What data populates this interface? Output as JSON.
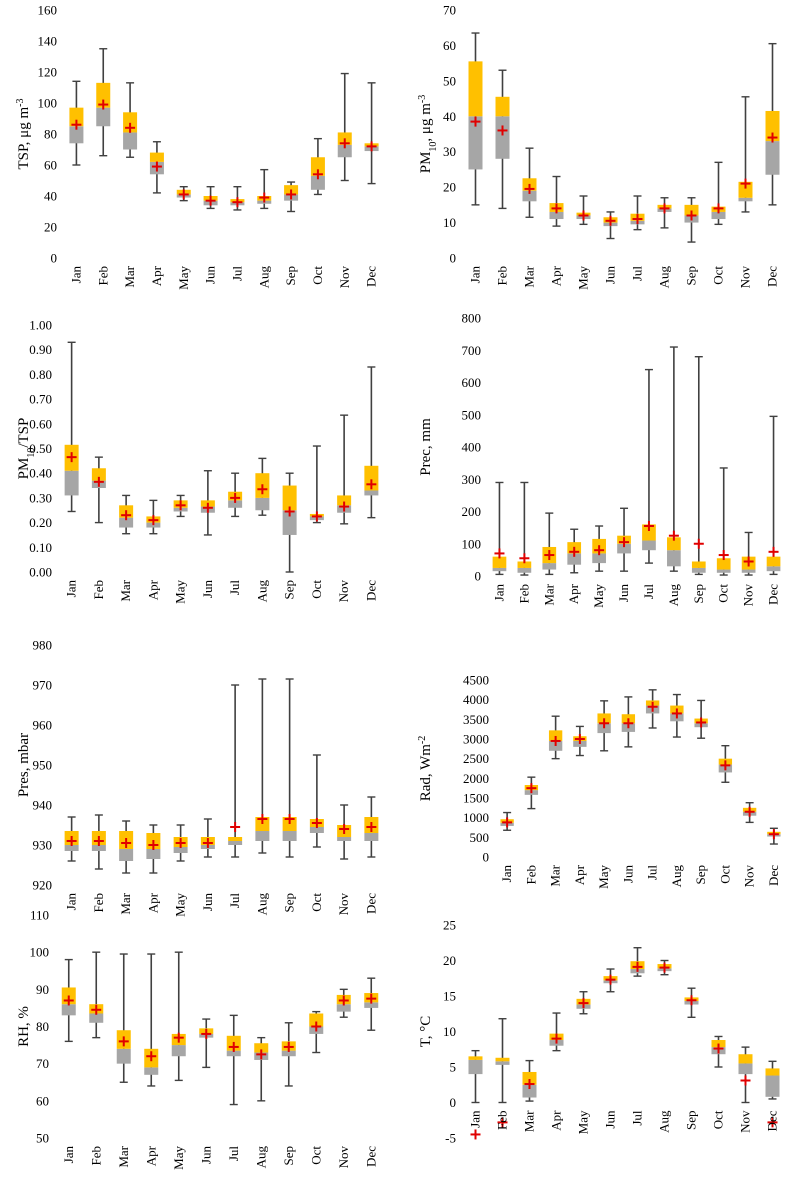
{
  "colors": {
    "upper": "#FFC000",
    "lower": "#A6A6A6",
    "whisker": "#404040",
    "mean": "#E00000"
  },
  "chart_data": [
    {
      "type": "box",
      "title": "",
      "ylabel": "TSP, μg m⁻³",
      "ylabel_parts": [
        {
          "t": "TSP, μg m"
        },
        {
          "t": "-3",
          "sup": true
        }
      ],
      "ylim": [
        0,
        160
      ],
      "yticks": [
        0,
        20,
        40,
        60,
        80,
        100,
        120,
        140,
        160
      ],
      "ytick_labels": [
        "0",
        "20",
        "40",
        "60",
        "80",
        "100",
        "120",
        "140",
        "160"
      ],
      "categories": [
        "Jan",
        "Feb",
        "Mar",
        "Apr",
        "May",
        "Jun",
        "Jul",
        "Aug",
        "Sep",
        "Oct",
        "Nov",
        "Dec"
      ],
      "min": [
        60,
        66,
        65,
        42,
        37,
        32,
        31,
        32,
        30,
        41,
        50,
        48
      ],
      "q1": [
        74,
        85,
        70,
        54,
        39,
        34,
        34,
        35,
        37,
        44,
        65,
        69
      ],
      "median": [
        85,
        97,
        81,
        62,
        41,
        37,
        36,
        37,
        41,
        53,
        73,
        72
      ],
      "q3": [
        97,
        113,
        94,
        68,
        44,
        40,
        38,
        40,
        47,
        65,
        81,
        74
      ],
      "max": [
        114,
        135,
        113,
        75,
        46,
        46,
        46,
        57,
        49,
        77,
        119,
        113
      ],
      "mean": [
        86,
        99,
        84,
        59,
        41,
        37,
        36,
        39,
        41,
        54,
        74,
        72
      ]
    },
    {
      "type": "box",
      "title": "",
      "ylabel": "PM₁₀, μg m⁻³",
      "ylabel_parts": [
        {
          "t": "PM"
        },
        {
          "t": "10",
          "sub": true
        },
        {
          "t": ", μg m"
        },
        {
          "t": "-3",
          "sup": true
        }
      ],
      "ylim": [
        0,
        70
      ],
      "yticks": [
        0,
        10,
        20,
        30,
        40,
        50,
        60,
        70
      ],
      "ytick_labels": [
        "0",
        "10",
        "20",
        "30",
        "40",
        "50",
        "60",
        "70"
      ],
      "categories": [
        "Jan",
        "Feb",
        "Mar",
        "Apr",
        "May",
        "Jun",
        "Jul",
        "Aug",
        "Sep",
        "Oct",
        "Nov",
        "Dec"
      ],
      "min": [
        15,
        14,
        11.5,
        9,
        9.5,
        5.5,
        8,
        8.5,
        4.5,
        9.5,
        13,
        15
      ],
      "q1": [
        25,
        28,
        16,
        11,
        11,
        9,
        9.5,
        13,
        10,
        11,
        16,
        23.5
      ],
      "median": [
        40,
        40,
        19,
        13,
        12,
        10,
        10.5,
        14,
        12,
        13,
        17,
        33
      ],
      "q3": [
        55.5,
        45.5,
        22.5,
        15.5,
        12.8,
        11.5,
        12.5,
        15,
        15,
        14.5,
        21.5,
        41.5
      ],
      "max": [
        63.5,
        53,
        31,
        23,
        17.5,
        13,
        17.5,
        17,
        17,
        27,
        45.5,
        60.5
      ],
      "mean": [
        38.5,
        36,
        19.5,
        14,
        12,
        10.5,
        11,
        14,
        12,
        14,
        21,
        34
      ]
    },
    {
      "type": "box",
      "title": "",
      "ylabel": "PM₁₀/TSP",
      "ylabel_parts": [
        {
          "t": "PM"
        },
        {
          "t": "10",
          "sub": true
        },
        {
          "t": "/TSP"
        }
      ],
      "ylim": [
        0,
        1
      ],
      "yticks": [
        0,
        0.1,
        0.2,
        0.3,
        0.4,
        0.5,
        0.6,
        0.7,
        0.8,
        0.9,
        1
      ],
      "ytick_labels": [
        "0.00",
        "0.10",
        "0.20",
        "0.30",
        "0.40",
        "0.50",
        "0.60",
        "0.70",
        "0.80",
        "0.90",
        "1.00"
      ],
      "categories": [
        "Jan",
        "Feb",
        "Mar",
        "Apr",
        "May",
        "Jun",
        "Jul",
        "Aug",
        "Sep",
        "Oct",
        "Nov",
        "Dec"
      ],
      "min": [
        0.245,
        0.2,
        0.155,
        0.155,
        0.225,
        0.15,
        0.225,
        0.23,
        0,
        0.2,
        0.195,
        0.22
      ],
      "q1": [
        0.31,
        0.34,
        0.18,
        0.18,
        0.245,
        0.24,
        0.26,
        0.25,
        0.15,
        0.21,
        0.24,
        0.31
      ],
      "median": [
        0.41,
        0.37,
        0.22,
        0.2,
        0.26,
        0.265,
        0.29,
        0.3,
        0.25,
        0.225,
        0.27,
        0.33
      ],
      "q3": [
        0.515,
        0.42,
        0.27,
        0.225,
        0.29,
        0.29,
        0.325,
        0.4,
        0.35,
        0.235,
        0.31,
        0.43
      ],
      "max": [
        0.93,
        0.465,
        0.31,
        0.29,
        0.31,
        0.41,
        0.4,
        0.46,
        0.4,
        0.51,
        0.635,
        0.83
      ],
      "mean": [
        0.465,
        0.365,
        0.23,
        0.21,
        0.27,
        0.26,
        0.3,
        0.335,
        0.245,
        0.225,
        0.265,
        0.355
      ]
    },
    {
      "type": "box",
      "title": "",
      "ylabel": "Prec, mm",
      "ylabel_parts": [
        {
          "t": "Prec, mm"
        }
      ],
      "ylim": [
        0,
        800
      ],
      "yticks": [
        0,
        100,
        200,
        300,
        400,
        500,
        600,
        700,
        800
      ],
      "ytick_labels": [
        "0",
        "100",
        "200",
        "300",
        "400",
        "500",
        "600",
        "700",
        "800"
      ],
      "categories": [
        "Jan",
        "Feb",
        "Mar",
        "Apr",
        "May",
        "Jun",
        "Jul",
        "Aug",
        "Sep",
        "Oct",
        "Nov",
        "Dec"
      ],
      "min": [
        5,
        3,
        5,
        10,
        15,
        15,
        40,
        15,
        5,
        3,
        3,
        5
      ],
      "q1": [
        15,
        10,
        20,
        35,
        40,
        70,
        80,
        30,
        10,
        10,
        10,
        15
      ],
      "median": [
        25,
        25,
        40,
        70,
        70,
        100,
        110,
        80,
        25,
        20,
        20,
        30
      ],
      "q3": [
        60,
        45,
        90,
        105,
        115,
        125,
        160,
        120,
        45,
        55,
        60,
        60
      ],
      "max": [
        290,
        290,
        195,
        145,
        155,
        210,
        640,
        710,
        680,
        335,
        135,
        495
      ],
      "mean": [
        70,
        55,
        65,
        75,
        80,
        105,
        155,
        125,
        100,
        65,
        45,
        75
      ]
    },
    {
      "type": "box",
      "title": "",
      "ylabel": "Pres, mbar",
      "ylabel_parts": [
        {
          "t": "Pres, mbar"
        }
      ],
      "ylim": [
        920,
        980
      ],
      "yticks": [
        920,
        930,
        940,
        950,
        960,
        970,
        980
      ],
      "ytick_labels": [
        "920",
        "930",
        "940",
        "950",
        "960",
        "970",
        "980"
      ],
      "categories": [
        "Jan",
        "Feb",
        "Mar",
        "Apr",
        "May",
        "Jun",
        "Jul",
        "Aug",
        "Sep",
        "Oct",
        "Nov",
        "Dec"
      ],
      "min": [
        926,
        924,
        923,
        923,
        926,
        927,
        927,
        928,
        927,
        929.5,
        926.5,
        927
      ],
      "q1": [
        928.5,
        928.5,
        926,
        926.5,
        928,
        929,
        930,
        931,
        931,
        933,
        931,
        931
      ],
      "median": [
        930,
        930,
        929,
        929,
        929.5,
        930,
        931,
        933.5,
        933.5,
        934.5,
        932,
        933
      ],
      "q3": [
        933.5,
        933.5,
        933.5,
        933,
        932,
        932,
        932,
        937,
        937,
        936.5,
        935,
        937
      ],
      "max": [
        937,
        937.5,
        936,
        935,
        935,
        936.5,
        970,
        971.5,
        971.5,
        952.5,
        940,
        942
      ],
      "mean": [
        931,
        931,
        930.5,
        930,
        930.5,
        930.5,
        934.5,
        936.5,
        936.5,
        935.5,
        934,
        934.5
      ]
    },
    {
      "type": "box",
      "title": "",
      "ylabel": "Rad, Wm⁻²",
      "ylabel_parts": [
        {
          "t": "Rad, Wm"
        },
        {
          "t": "-2",
          "sup": true
        }
      ],
      "ylim": [
        0,
        4500
      ],
      "yticks": [
        0,
        500,
        1000,
        1500,
        2000,
        2500,
        3000,
        3500,
        4000,
        4500
      ],
      "ytick_labels": [
        "0",
        "500",
        "1000",
        "1500",
        "2000",
        "2500",
        "3000",
        "3500",
        "4000",
        "4500"
      ],
      "categories": [
        "Jan",
        "Feb",
        "Mar",
        "Apr",
        "May",
        "Jun",
        "Jul",
        "Aug",
        "Sep",
        "Oct",
        "Nov",
        "Dec"
      ],
      "min": [
        680,
        1230,
        2500,
        2580,
        2700,
        2800,
        3280,
        3050,
        3020,
        1900,
        880,
        330
      ],
      "q1": [
        790,
        1580,
        2700,
        2800,
        3150,
        3180,
        3650,
        3450,
        3300,
        2150,
        1050,
        520
      ],
      "median": [
        870,
        1700,
        2950,
        2950,
        3400,
        3400,
        3850,
        3650,
        3400,
        2350,
        1150,
        580
      ],
      "q3": [
        960,
        1830,
        3220,
        3070,
        3650,
        3630,
        3980,
        3850,
        3520,
        2500,
        1250,
        640
      ],
      "max": [
        1130,
        2030,
        3580,
        3320,
        3970,
        4070,
        4250,
        4130,
        3980,
        2830,
        1380,
        730
      ],
      "mean": [
        880,
        1750,
        2950,
        3000,
        3400,
        3400,
        3820,
        3650,
        3420,
        2330,
        1150,
        580
      ]
    },
    {
      "type": "box",
      "title": "",
      "ylabel": "RH, %",
      "ylabel_parts": [
        {
          "t": "RH, %"
        }
      ],
      "ylim": [
        50,
        110
      ],
      "yticks": [
        50,
        60,
        70,
        80,
        90,
        100,
        110
      ],
      "ytick_labels": [
        "50",
        "60",
        "70",
        "80",
        "90",
        "100",
        "110"
      ],
      "categories": [
        "Jan",
        "Feb",
        "Mar",
        "Apr",
        "May",
        "Jun",
        "Jul",
        "Aug",
        "Sep",
        "Oct",
        "Nov",
        "Dec"
      ],
      "min": [
        76,
        77,
        65,
        64,
        65.5,
        69,
        59,
        60,
        64,
        73,
        82.5,
        79
      ],
      "q1": [
        83,
        81,
        70,
        67,
        72,
        77,
        72,
        71,
        72,
        78,
        84,
        85
      ],
      "median": [
        86,
        83.5,
        74,
        69,
        75,
        78,
        73.5,
        73,
        73.5,
        80,
        86,
        86.5
      ],
      "q3": [
        90.5,
        86,
        79,
        74,
        78,
        79.5,
        77.5,
        75.5,
        76,
        83.5,
        88.5,
        89
      ],
      "max": [
        98,
        100,
        99.5,
        99.5,
        100,
        82,
        83,
        77,
        81,
        84,
        90,
        93
      ],
      "mean": [
        87,
        84.5,
        76,
        72,
        77,
        78,
        74.5,
        72.5,
        74.5,
        80,
        87,
        87.5
      ]
    },
    {
      "type": "box",
      "title": "",
      "ylabel": "T, °C",
      "ylabel_parts": [
        {
          "t": "T, °C"
        }
      ],
      "ylim": [
        -5,
        25
      ],
      "yticks": [
        -5,
        0,
        5,
        10,
        15,
        20,
        25
      ],
      "ytick_labels": [
        "-5",
        "0",
        "5",
        "10",
        "15",
        "20",
        "25"
      ],
      "categories": [
        "Jan",
        "Feb",
        "Mar",
        "Apr",
        "May",
        "Jun",
        "Jul",
        "Aug",
        "Sep",
        "Oct",
        "Nov",
        "Dec"
      ],
      "min": [
        0,
        0,
        0.2,
        7.3,
        12.5,
        15.6,
        17.8,
        18,
        12,
        5,
        0,
        0.5
      ],
      "q1": [
        4,
        5.3,
        0.7,
        8,
        13.2,
        16.8,
        18.2,
        18.5,
        13.8,
        6.8,
        4,
        0.8
      ],
      "median": [
        6,
        5.8,
        2.5,
        8.8,
        13.8,
        17.2,
        18.8,
        18.9,
        14.3,
        7.8,
        5.5,
        3.8
      ],
      "q3": [
        6.5,
        6.3,
        4.3,
        9.7,
        14.6,
        17.8,
        19.9,
        19.5,
        14.8,
        8.8,
        6.8,
        4.8
      ],
      "max": [
        7.3,
        11.8,
        5.9,
        12.6,
        15.6,
        18.8,
        21.8,
        20,
        16.1,
        9.3,
        7.8,
        5.8
      ],
      "mean": [
        -4.5,
        -2.8,
        2.6,
        9,
        14,
        17.3,
        19.1,
        19,
        14.4,
        7.6,
        3.1,
        -2.8
      ]
    }
  ]
}
